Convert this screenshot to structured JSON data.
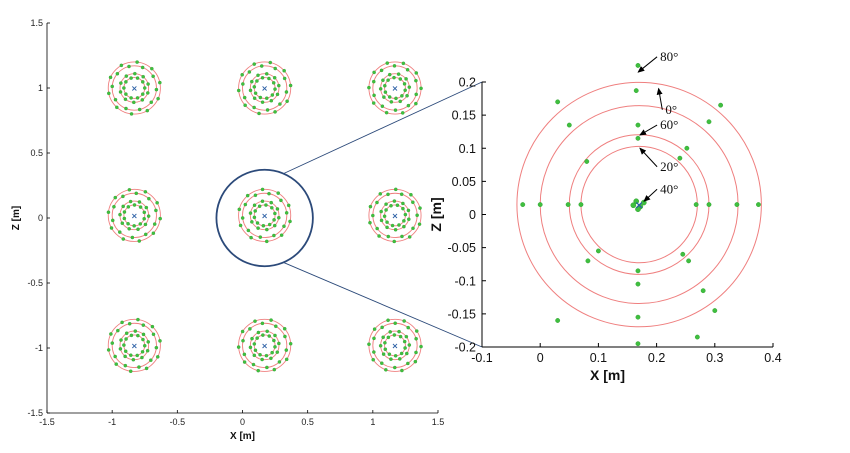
{
  "colors": {
    "circle": "#ef7f7f",
    "point": "#3fbf3f",
    "point_edge": "#2a9a2a",
    "center": "#2b5fa5",
    "zoom": "#2c4a7a",
    "axis": "#000000"
  },
  "chart_data": [
    {
      "type": "scatter",
      "title": "",
      "xlabel": "X [m]",
      "ylabel": "Z [m]",
      "xlim": [
        -1.5,
        1.5
      ],
      "ylim": [
        -1.5,
        1.5
      ],
      "xticks": [
        "-1.5",
        "-1",
        "-0.5",
        "0",
        "0.5",
        "1",
        "1.5"
      ],
      "yticks": [
        "1.5",
        "1",
        "0.5",
        "0",
        "-0.5",
        "-1",
        "-1.5"
      ],
      "grid": false,
      "centers": [
        [
          -0.83,
          1.0
        ],
        [
          0.17,
          1.0
        ],
        [
          1.17,
          1.0
        ],
        [
          -0.83,
          0.02
        ],
        [
          0.17,
          0.02
        ],
        [
          1.17,
          0.02
        ],
        [
          -0.83,
          -0.98
        ],
        [
          0.17,
          -0.98
        ],
        [
          1.17,
          -0.98
        ]
      ],
      "circle_radii": [
        0.08,
        0.11,
        0.17,
        0.2
      ],
      "points_per_circle": 10,
      "zoom_center": [
        0.17,
        0.0
      ],
      "zoom_radius": 0.37
    },
    {
      "type": "scatter",
      "title": "",
      "xlabel": "X [m]",
      "ylabel": "Z [m]",
      "xlim": [
        -0.1,
        0.4
      ],
      "ylim": [
        -0.2,
        0.2
      ],
      "xticks": [
        "-0.1",
        "0",
        "0.1",
        "0.2",
        "0.3",
        "0.4"
      ],
      "yticks": [
        "0.2",
        "0.15",
        "0.1",
        "0.05",
        "0",
        "-0.05",
        "-0.1",
        "-0.15",
        "-0.2"
      ],
      "grid": false,
      "center": [
        0.17,
        0.015
      ],
      "circles": [
        {
          "angle": "20°",
          "radius": 0.1
        },
        {
          "angle": "60°",
          "radius": 0.12
        },
        {
          "angle": "0°",
          "radius": 0.17
        },
        {
          "angle": "80°",
          "radius": 0.21
        }
      ],
      "points": [
        [
          0.168,
          0.115
        ],
        [
          0.268,
          0.015
        ],
        [
          0.168,
          -0.085
        ],
        [
          0.07,
          0.015
        ],
        [
          0.24,
          0.085
        ],
        [
          0.1,
          -0.055
        ],
        [
          0.245,
          -0.06
        ],
        [
          0.168,
          0.135
        ],
        [
          0.29,
          0.015
        ],
        [
          0.168,
          -0.105
        ],
        [
          0.048,
          0.015
        ],
        [
          0.252,
          0.1
        ],
        [
          0.08,
          0.08
        ],
        [
          0.255,
          -0.07
        ],
        [
          0.082,
          -0.07
        ],
        [
          0.165,
          0.187
        ],
        [
          0.338,
          0.015
        ],
        [
          0.168,
          -0.155
        ],
        [
          0.0,
          0.015
        ],
        [
          0.29,
          0.14
        ],
        [
          0.05,
          0.135
        ],
        [
          0.28,
          -0.115
        ],
        [
          0.168,
          0.225
        ],
        [
          0.375,
          0.015
        ],
        [
          0.168,
          -0.195
        ],
        [
          -0.03,
          0.015
        ],
        [
          0.31,
          0.165
        ],
        [
          0.03,
          0.17
        ],
        [
          0.3,
          -0.145
        ],
        [
          0.03,
          -0.16
        ],
        [
          0.27,
          -0.185
        ]
      ],
      "center_cluster": [
        [
          0.165,
          0.02
        ],
        [
          0.172,
          0.012
        ],
        [
          0.178,
          0.018
        ],
        [
          0.168,
          0.008
        ],
        [
          0.16,
          0.014
        ]
      ],
      "annotations": [
        {
          "label": "80°",
          "target": [
            0.165,
            0.215
          ],
          "text_pos": [
            0.206,
            0.232
          ]
        },
        {
          "label": "0°",
          "target": [
            0.2,
            0.19
          ],
          "text_pos": [
            0.215,
            0.152
          ]
        },
        {
          "label": "60°",
          "target": [
            0.168,
            0.12
          ],
          "text_pos": [
            0.206,
            0.129
          ]
        },
        {
          "label": "20°",
          "target": [
            0.168,
            0.1
          ],
          "text_pos": [
            0.206,
            0.066
          ]
        },
        {
          "label": "40°",
          "target": [
            0.175,
            0.02
          ],
          "text_pos": [
            0.206,
            0.032
          ]
        }
      ]
    }
  ]
}
